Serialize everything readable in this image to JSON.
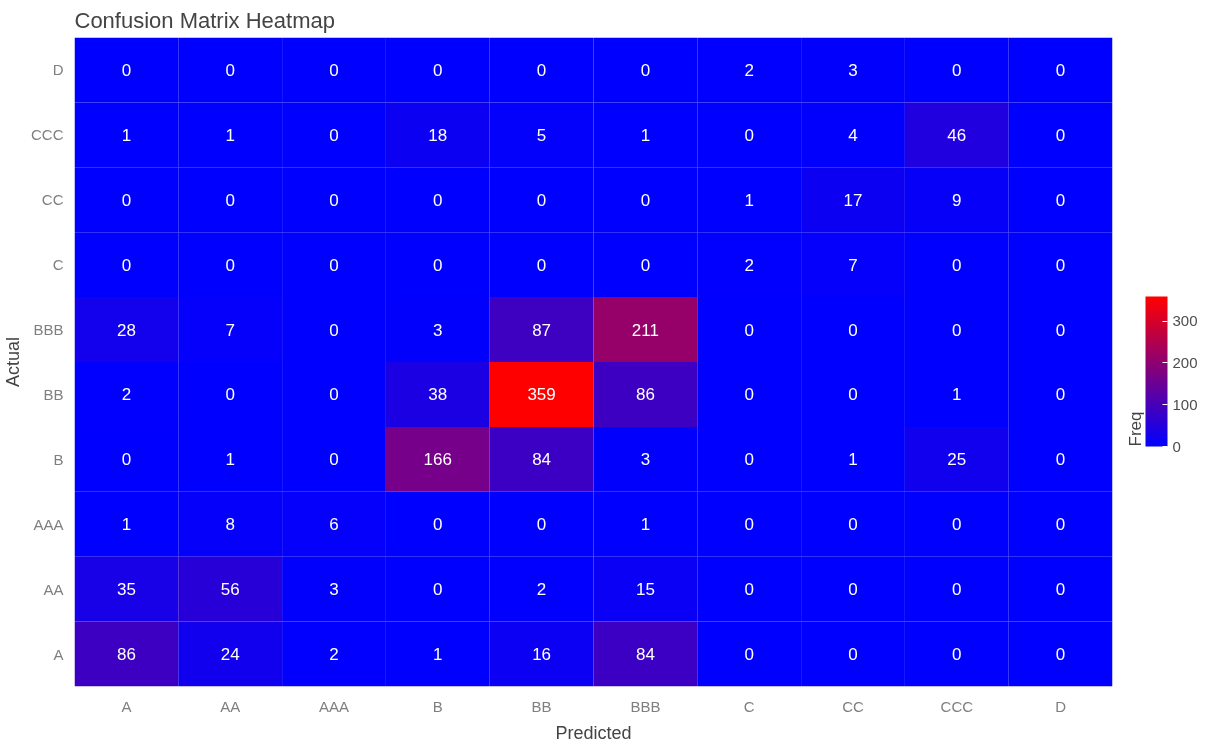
{
  "chart_data": {
    "type": "heatmap",
    "title": "Confusion Matrix Heatmap",
    "xlabel": "Predicted",
    "ylabel": "Actual",
    "clabel": "Freq",
    "categories": [
      "A",
      "AA",
      "AAA",
      "B",
      "BB",
      "BBB",
      "C",
      "CC",
      "CCC",
      "D"
    ],
    "y_categories": [
      "D",
      "CCC",
      "CC",
      "C",
      "BBB",
      "BB",
      "B",
      "AAA",
      "AA",
      "A"
    ],
    "cells": [
      [
        0,
        0,
        0,
        0,
        0,
        0,
        2,
        3,
        0,
        0
      ],
      [
        1,
        1,
        0,
        18,
        5,
        1,
        0,
        4,
        46,
        0
      ],
      [
        0,
        0,
        0,
        0,
        0,
        0,
        1,
        17,
        9,
        0
      ],
      [
        0,
        0,
        0,
        0,
        0,
        0,
        2,
        7,
        0,
        0
      ],
      [
        28,
        7,
        0,
        3,
        87,
        211,
        0,
        0,
        0,
        0
      ],
      [
        2,
        0,
        0,
        38,
        359,
        86,
        0,
        0,
        1,
        0
      ],
      [
        0,
        1,
        0,
        166,
        84,
        3,
        0,
        1,
        25,
        0
      ],
      [
        1,
        8,
        6,
        0,
        0,
        1,
        0,
        0,
        0,
        0
      ],
      [
        35,
        56,
        3,
        0,
        2,
        15,
        0,
        0,
        0,
        0
      ],
      [
        86,
        24,
        2,
        1,
        16,
        84,
        0,
        0,
        0,
        0
      ]
    ],
    "colors": [
      "#0000ff",
      "#ff0000"
    ],
    "clim": [
      0,
      359
    ],
    "cticks": [
      0,
      100,
      200,
      300
    ],
    "data_labels": true
  }
}
